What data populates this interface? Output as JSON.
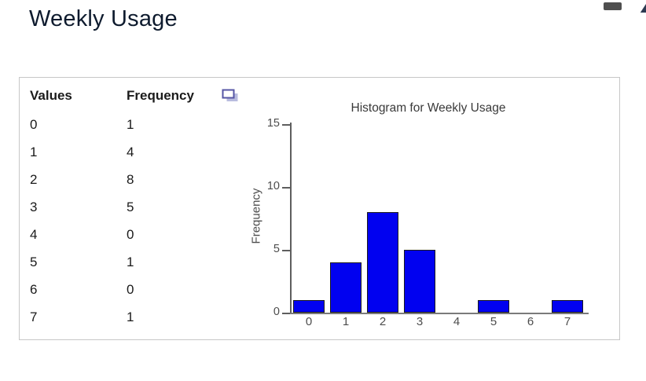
{
  "page": {
    "title": "Weekly Usage"
  },
  "panel": {
    "table": {
      "headers": {
        "values": "Values",
        "frequency": "Frequency"
      },
      "copy_icon": "copy-icon",
      "rows": [
        {
          "value": "0",
          "frequency": "1"
        },
        {
          "value": "1",
          "frequency": "4"
        },
        {
          "value": "2",
          "frequency": "8"
        },
        {
          "value": "3",
          "frequency": "5"
        },
        {
          "value": "4",
          "frequency": "0"
        },
        {
          "value": "5",
          "frequency": "1"
        },
        {
          "value": "6",
          "frequency": "0"
        },
        {
          "value": "7",
          "frequency": "1"
        }
      ]
    }
  },
  "chart_data": {
    "type": "bar",
    "title": "Histogram for Weekly Usage",
    "categories": [
      "0",
      "1",
      "2",
      "3",
      "4",
      "5",
      "6",
      "7"
    ],
    "values": [
      1,
      4,
      8,
      5,
      0,
      1,
      0,
      1
    ],
    "xlabel": "",
    "ylabel": "Frequency",
    "ylim": [
      0,
      15
    ],
    "yticks": [
      0,
      5,
      10,
      15
    ],
    "grid": "off",
    "legend": "none",
    "bar_color": "#0101f0",
    "bar_border": "#1c1c1c"
  },
  "colors": {
    "title_text": "#0e1b2e",
    "panel_border": "#c7c7c7",
    "axis": "#5e5e5e",
    "chart_text": "#4d4d4d"
  }
}
